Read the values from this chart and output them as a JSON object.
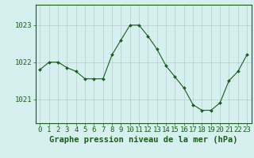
{
  "hours": [
    0,
    1,
    2,
    3,
    4,
    5,
    6,
    7,
    8,
    9,
    10,
    11,
    12,
    13,
    14,
    15,
    16,
    17,
    18,
    19,
    20,
    21,
    22,
    23
  ],
  "pressure": [
    1021.8,
    1022.0,
    1022.0,
    1021.85,
    1021.75,
    1021.55,
    1021.55,
    1021.55,
    1022.2,
    1022.6,
    1023.0,
    1023.0,
    1022.7,
    1022.35,
    1021.9,
    1021.6,
    1021.3,
    1020.85,
    1020.7,
    1020.7,
    1020.9,
    1021.5,
    1021.75,
    1022.2
  ],
  "line_color": "#1a5c1a",
  "marker": "D",
  "marker_size": 2.0,
  "bg_color": "#d6f0f0",
  "grid_color": "#b8cbcb",
  "axis_label_color": "#1a5c1a",
  "tick_label_color": "#1a5c1a",
  "yticks": [
    1021,
    1022,
    1023
  ],
  "ylim": [
    1020.35,
    1023.55
  ],
  "xlim": [
    -0.5,
    23.5
  ],
  "xlabel": "Graphe pression niveau de la mer (hPa)",
  "xlabel_fontsize": 7.5,
  "tick_fontsize": 6.5
}
